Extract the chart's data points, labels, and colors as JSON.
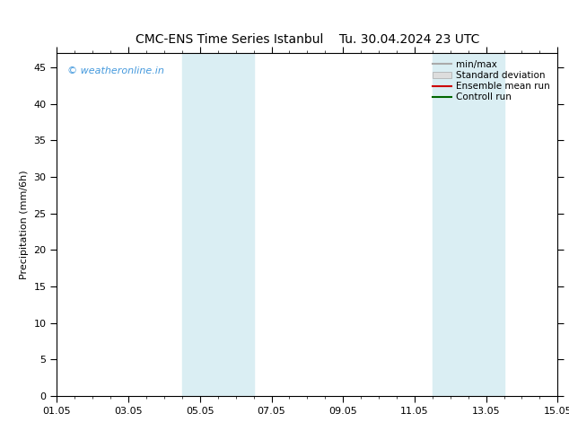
{
  "title": "CMC-ENS Time Series Istanbul",
  "title2": "Tu. 30.04.2024 23 UTC",
  "ylabel": "Precipitation (mm/6h)",
  "ylim": [
    0,
    47
  ],
  "yticks": [
    0,
    5,
    10,
    15,
    20,
    25,
    30,
    35,
    40,
    45
  ],
  "xtick_labels": [
    "01.05",
    "03.05",
    "05.05",
    "07.05",
    "09.05",
    "11.05",
    "13.05",
    "15.05"
  ],
  "xtick_positions": [
    0,
    2,
    4,
    6,
    8,
    10,
    12,
    14
  ],
  "x_total_days": 14,
  "shaded_bands": [
    {
      "x_start": 3.5,
      "x_end": 4.5
    },
    {
      "x_start": 4.5,
      "x_end": 5.5
    },
    {
      "x_start": 10.5,
      "x_end": 11.5
    },
    {
      "x_start": 11.5,
      "x_end": 12.5
    }
  ],
  "shade_color": "#daeef3",
  "watermark": "© weatheronline.in",
  "watermark_color": "#4499dd",
  "legend_items": [
    {
      "label": "min/max",
      "color": "#aaaaaa",
      "lw": 1.5,
      "ls": "-"
    },
    {
      "label": "Standard deviation",
      "color": "#cccccc",
      "lw": 8,
      "ls": "-"
    },
    {
      "label": "Ensemble mean run",
      "color": "#cc0000",
      "lw": 1.5,
      "ls": "-"
    },
    {
      "label": "Controll run",
      "color": "#006600",
      "lw": 1.5,
      "ls": "-"
    }
  ],
  "background_color": "#ffffff",
  "title_fontsize": 10,
  "axis_fontsize": 8,
  "tick_fontsize": 8,
  "legend_fontsize": 7.5
}
